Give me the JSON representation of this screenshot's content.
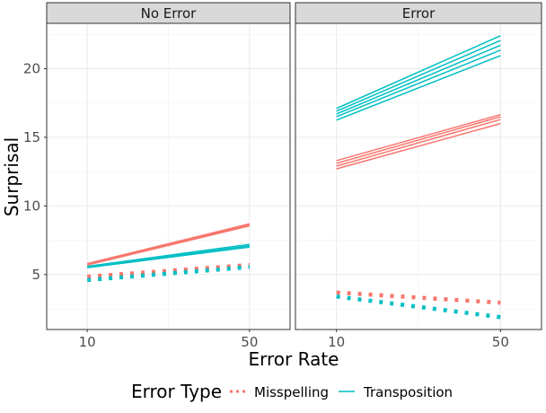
{
  "chart_data": {
    "type": "line",
    "ylabel": "Surprisal",
    "xlabel": "Error Rate",
    "x_ticks": [
      10,
      50
    ],
    "y_ticks": [
      5,
      10,
      15,
      20
    ],
    "xlim": [
      0,
      60
    ],
    "ylim": [
      1.0,
      23.3
    ],
    "grid": true,
    "legend": {
      "title": "Error Type",
      "position": "bottom",
      "entries": [
        {
          "name": "Misspelling",
          "color": "#F8766D"
        },
        {
          "name": "Transposition",
          "color": "#00BFC4"
        }
      ]
    },
    "panels": [
      {
        "title": "No Error",
        "series": [
          {
            "name": "Misspelling",
            "style": "solid",
            "color": "#F8766D",
            "x": [
              10,
              50
            ],
            "y": [
              5.8,
              8.7
            ]
          },
          {
            "name": "Misspelling",
            "style": "solid",
            "color": "#F8766D",
            "x": [
              10,
              50
            ],
            "y": [
              5.75,
              8.62
            ]
          },
          {
            "name": "Misspelling",
            "style": "solid",
            "color": "#F8766D",
            "x": [
              10,
              50
            ],
            "y": [
              5.7,
              8.55
            ]
          },
          {
            "name": "Transposition",
            "style": "solid",
            "color": "#00BFC4",
            "x": [
              10,
              50
            ],
            "y": [
              5.6,
              7.2
            ]
          },
          {
            "name": "Transposition",
            "style": "solid",
            "color": "#00BFC4",
            "x": [
              10,
              50
            ],
            "y": [
              5.55,
              7.1
            ]
          },
          {
            "name": "Transposition",
            "style": "solid",
            "color": "#00BFC4",
            "x": [
              10,
              50
            ],
            "y": [
              5.5,
              7.0
            ]
          },
          {
            "name": "Misspelling",
            "style": "dotted",
            "color": "#F8766D",
            "x": [
              10,
              50
            ],
            "y": [
              4.85,
              5.7
            ]
          },
          {
            "name": "Transposition",
            "style": "dotted",
            "color": "#00BFC4",
            "x": [
              10,
              50
            ],
            "y": [
              4.6,
              5.55
            ]
          }
        ]
      },
      {
        "title": "Error",
        "series": [
          {
            "name": "Transposition",
            "style": "solid",
            "color": "#00BFC4",
            "x": [
              10,
              50
            ],
            "y": [
              17.1,
              22.4
            ]
          },
          {
            "name": "Transposition",
            "style": "solid",
            "color": "#00BFC4",
            "x": [
              10,
              50
            ],
            "y": [
              16.9,
              22.05
            ]
          },
          {
            "name": "Transposition",
            "style": "solid",
            "color": "#00BFC4",
            "x": [
              10,
              50
            ],
            "y": [
              16.7,
              21.7
            ]
          },
          {
            "name": "Transposition",
            "style": "solid",
            "color": "#00BFC4",
            "x": [
              10,
              50
            ],
            "y": [
              16.5,
              21.35
            ]
          },
          {
            "name": "Transposition",
            "style": "solid",
            "color": "#00BFC4",
            "x": [
              10,
              50
            ],
            "y": [
              16.25,
              20.95
            ]
          },
          {
            "name": "Misspelling",
            "style": "solid",
            "color": "#F8766D",
            "x": [
              10,
              50
            ],
            "y": [
              13.3,
              16.65
            ]
          },
          {
            "name": "Misspelling",
            "style": "solid",
            "color": "#F8766D",
            "x": [
              10,
              50
            ],
            "y": [
              13.1,
              16.5
            ]
          },
          {
            "name": "Misspelling",
            "style": "solid",
            "color": "#F8766D",
            "x": [
              10,
              50
            ],
            "y": [
              12.9,
              16.3
            ]
          },
          {
            "name": "Misspelling",
            "style": "solid",
            "color": "#F8766D",
            "x": [
              10,
              50
            ],
            "y": [
              12.7,
              16.0
            ]
          },
          {
            "name": "Misspelling",
            "style": "dotted",
            "color": "#F8766D",
            "x": [
              10,
              50
            ],
            "y": [
              3.7,
              2.95
            ]
          },
          {
            "name": "Transposition",
            "style": "dotted",
            "color": "#00BFC4",
            "x": [
              10,
              50
            ],
            "y": [
              3.4,
              1.9
            ]
          }
        ]
      }
    ]
  }
}
